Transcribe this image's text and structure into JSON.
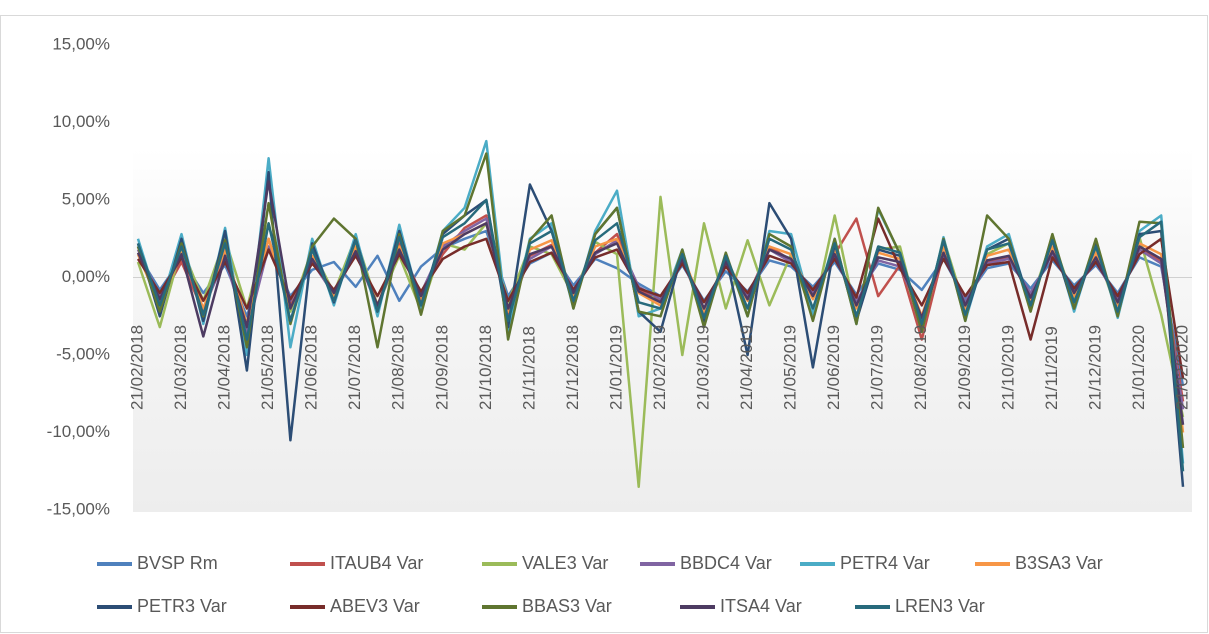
{
  "chart_data": {
    "type": "line",
    "categories": [
      "21/02/2018",
      null,
      "21/03/2018",
      null,
      "21/04/2018",
      null,
      "21/05/2018",
      null,
      "21/06/2018",
      null,
      "21/07/2018",
      null,
      "21/08/2018",
      null,
      "21/09/2018",
      null,
      "21/10/2018",
      null,
      "21/11/2018",
      null,
      "21/12/2018",
      null,
      "21/01/2019",
      null,
      "21/02/2019",
      null,
      "21/03/2019",
      null,
      "21/04/2019",
      null,
      "21/05/2019",
      null,
      "21/06/2019",
      null,
      "21/07/2019",
      null,
      "21/08/2019",
      null,
      "21/09/2019",
      null,
      "21/10/2019",
      null,
      "21/11/2019",
      null,
      "21/12/2019",
      null,
      "21/01/2020",
      null,
      "21/02/2020"
    ],
    "ylim": [
      -15,
      15
    ],
    "yticks": [
      {
        "value": 15,
        "label": "15,00%"
      },
      {
        "value": 10,
        "label": "10,00%"
      },
      {
        "value": 5,
        "label": "5,00%"
      },
      {
        "value": 0,
        "label": "0,00%"
      },
      {
        "value": -5,
        "label": "-5,00%"
      },
      {
        "value": -10,
        "label": "-10,00%"
      },
      {
        "value": -15,
        "label": "-15,00%"
      }
    ],
    "grid": false,
    "legend": "bottom",
    "series": [
      {
        "name": "BVSP Rm",
        "color": "#4f81bd",
        "values": [
          1.5,
          -0.8,
          1.2,
          -1.0,
          0.8,
          -2.5,
          1.8,
          -1.2,
          0.5,
          1.0,
          -0.6,
          1.4,
          -1.5,
          0.7,
          1.9,
          2.5,
          3.0,
          -1.2,
          0.9,
          1.6,
          -0.5,
          1.2,
          0.6,
          -0.4,
          -1.2,
          0.8,
          -1.5,
          0.4,
          -0.9,
          1.1,
          0.7,
          -0.6,
          1.0,
          -1.1,
          0.9,
          0.5,
          -0.8,
          1.2,
          -1.4,
          0.6,
          0.9,
          -0.7,
          1.1,
          -0.5,
          0.8,
          -1.0,
          1.3,
          0.7,
          -7.0
        ]
      },
      {
        "name": "ITAUB4 Var",
        "color": "#c0504d",
        "values": [
          2.0,
          -1.5,
          1.0,
          -2.2,
          1.5,
          -3.0,
          2.5,
          -1.8,
          1.2,
          -0.9,
          1.8,
          -2.0,
          2.2,
          -1.1,
          1.5,
          3.2,
          4.0,
          -2.5,
          1.4,
          2.1,
          -1.0,
          1.6,
          2.8,
          -0.8,
          -1.5,
          1.2,
          -2.4,
          0.9,
          -1.3,
          2.0,
          1.1,
          -1.0,
          1.5,
          3.8,
          -1.2,
          0.8,
          -4.0,
          1.6,
          -1.8,
          1.0,
          1.3,
          -1.2,
          1.7,
          -0.9,
          1.2,
          -1.6,
          2.0,
          1.0,
          -8.0
        ]
      },
      {
        "name": "VALE3 Var",
        "color": "#9bbb59",
        "values": [
          1.0,
          -3.2,
          2.0,
          -1.5,
          2.5,
          -2.0,
          3.5,
          -2.2,
          1.8,
          -1.0,
          2.6,
          -1.8,
          1.4,
          -2.1,
          2.2,
          1.8,
          3.5,
          -1.6,
          2.0,
          1.5,
          -1.2,
          2.3,
          1.5,
          -13.5,
          5.2,
          -5.0,
          3.5,
          -2.0,
          2.4,
          -1.8,
          1.5,
          -2.5,
          4.0,
          -2.6,
          1.8,
          2.0,
          -3.5,
          2.5,
          -2.0,
          1.5,
          2.2,
          -1.6,
          2.5,
          -1.5,
          1.8,
          -2.3,
          2.6,
          -2.4,
          -9.0
        ]
      },
      {
        "name": "BBDC4 Var",
        "color": "#8064a2",
        "values": [
          1.8,
          -1.2,
          1.5,
          -2.0,
          1.2,
          -3.5,
          2.0,
          -1.5,
          1.0,
          -1.1,
          1.6,
          -1.9,
          1.8,
          -1.0,
          2.0,
          3.0,
          3.8,
          -2.0,
          1.2,
          2.0,
          -0.8,
          1.5,
          2.4,
          -0.6,
          -1.4,
          1.0,
          -2.0,
          0.8,
          -1.2,
          1.8,
          1.0,
          -0.9,
          1.4,
          -1.6,
          1.1,
          0.7,
          -2.5,
          1.5,
          -1.6,
          0.9,
          1.2,
          -1.0,
          1.5,
          -0.8,
          1.0,
          -1.4,
          1.8,
          0.9,
          -8.5
        ]
      },
      {
        "name": "PETR4 Var",
        "color": "#4bacc6",
        "values": [
          2.5,
          -2.0,
          2.8,
          -3.0,
          3.2,
          -5.0,
          7.7,
          -4.5,
          2.5,
          -1.8,
          2.8,
          -2.5,
          3.4,
          -2.0,
          3.0,
          4.5,
          8.8,
          -3.5,
          2.5,
          3.5,
          -2.0,
          3.0,
          5.6,
          -2.5,
          -2.0,
          1.8,
          -3.0,
          1.5,
          -2.5,
          3.0,
          2.8,
          -2.4,
          2.5,
          -3.0,
          4.4,
          1.5,
          -3.5,
          2.6,
          -2.8,
          2.0,
          2.8,
          -2.0,
          2.7,
          -2.2,
          2.4,
          -2.6,
          3.0,
          4.0,
          -12.0
        ]
      },
      {
        "name": "B3SA3 Var",
        "color": "#f79646",
        "values": [
          1.5,
          -1.8,
          1.6,
          -2.0,
          1.8,
          -3.0,
          2.5,
          -2.0,
          1.4,
          -1.2,
          2.0,
          -1.8,
          2.0,
          -1.5,
          2.2,
          2.8,
          3.5,
          -2.2,
          1.8,
          2.4,
          -1.2,
          2.0,
          2.5,
          -1.0,
          -1.8,
          1.5,
          -2.2,
          1.2,
          -1.5,
          2.0,
          1.5,
          -1.4,
          1.8,
          -2.0,
          1.6,
          1.2,
          -2.5,
          2.0,
          -2.0,
          1.4,
          1.8,
          -1.5,
          2.0,
          -1.2,
          1.6,
          -1.8,
          2.2,
          1.5,
          -10.0
        ]
      },
      {
        "name": "PETR3 Var",
        "color": "#2c4d75",
        "values": [
          2.2,
          -2.5,
          2.5,
          -2.8,
          3.0,
          -6.0,
          6.8,
          -10.5,
          2.2,
          -1.6,
          2.5,
          -2.2,
          3.0,
          -1.8,
          2.8,
          4.0,
          5.0,
          -3.2,
          6.0,
          3.0,
          -1.8,
          2.8,
          4.5,
          -2.2,
          -3.5,
          1.6,
          -2.8,
          1.4,
          -5.0,
          4.8,
          2.5,
          -5.8,
          2.2,
          -2.8,
          1.8,
          1.4,
          -3.2,
          2.4,
          -2.6,
          1.8,
          2.5,
          -1.8,
          2.4,
          -2.0,
          2.2,
          -2.4,
          2.8,
          3.0,
          -13.5
        ]
      },
      {
        "name": "ABEV3 Var",
        "color": "#772c2a",
        "values": [
          1.2,
          -1.0,
          1.3,
          -1.5,
          1.0,
          -2.0,
          1.8,
          -1.4,
          0.9,
          -0.8,
          1.4,
          -1.2,
          1.5,
          -0.9,
          1.2,
          2.0,
          2.5,
          -1.5,
          1.0,
          1.6,
          -0.8,
          1.3,
          1.8,
          -0.7,
          -1.2,
          0.9,
          -1.6,
          0.7,
          -1.0,
          1.4,
          0.9,
          -0.8,
          1.2,
          -1.3,
          3.8,
          0.6,
          -1.8,
          1.2,
          -1.2,
          0.8,
          1.0,
          -4.0,
          1.3,
          -0.7,
          1.0,
          -1.2,
          1.5,
          2.5,
          -6.5
        ]
      },
      {
        "name": "BBAS3 Var",
        "color": "#5f7530",
        "values": [
          2.0,
          -2.2,
          2.2,
          -2.5,
          2.4,
          -4.5,
          4.8,
          -3.0,
          2.0,
          3.8,
          2.5,
          -4.5,
          2.8,
          -2.4,
          3.0,
          4.0,
          8.0,
          -4.0,
          2.4,
          4.0,
          -2.0,
          2.8,
          4.5,
          -2.2,
          -2.5,
          1.8,
          -3.2,
          1.6,
          -2.5,
          2.8,
          2.0,
          -2.8,
          2.5,
          -3.0,
          4.5,
          1.5,
          -3.5,
          2.5,
          -2.8,
          4.0,
          2.5,
          -2.2,
          2.8,
          -2.0,
          2.5,
          -2.5,
          3.6,
          3.5,
          -11.0
        ]
      },
      {
        "name": "ITSA4 Var",
        "color": "#4d3b62",
        "values": [
          1.6,
          -1.4,
          1.5,
          -3.8,
          1.4,
          -3.2,
          6.2,
          -2.0,
          1.2,
          -1.0,
          1.7,
          -1.8,
          1.8,
          -1.2,
          1.8,
          2.8,
          3.5,
          -2.0,
          1.5,
          2.0,
          -1.0,
          1.6,
          2.2,
          -0.9,
          -1.6,
          1.2,
          -2.0,
          1.0,
          -1.4,
          1.8,
          1.2,
          -1.2,
          1.5,
          -1.8,
          1.3,
          1.0,
          -2.6,
          1.6,
          -1.8,
          1.1,
          1.4,
          -1.3,
          1.7,
          -1.0,
          1.3,
          -1.6,
          2.0,
          1.2,
          -9.5
        ]
      },
      {
        "name": "LREN3 Var",
        "color": "#276a7c",
        "values": [
          2.2,
          -1.8,
          2.0,
          -2.4,
          2.2,
          -4.0,
          3.5,
          -2.8,
          1.8,
          -1.5,
          2.4,
          -2.2,
          2.6,
          -1.8,
          2.6,
          3.5,
          5.0,
          -2.8,
          2.2,
          3.0,
          -1.5,
          2.4,
          3.5,
          -1.6,
          -2.0,
          1.5,
          -2.6,
          1.4,
          -2.0,
          2.5,
          1.8,
          -2.0,
          2.2,
          -2.5,
          2.0,
          1.6,
          -3.0,
          2.4,
          -2.4,
          1.8,
          2.2,
          -1.8,
          2.4,
          -1.6,
          2.0,
          -2.2,
          2.6,
          3.6,
          -12.5
        ]
      }
    ]
  }
}
